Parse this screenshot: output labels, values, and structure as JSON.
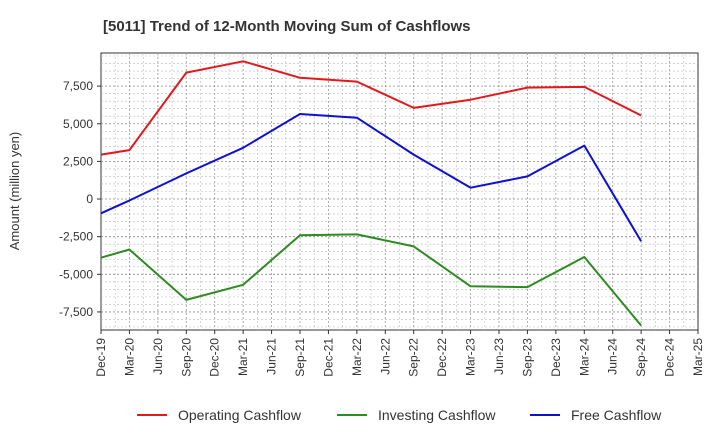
{
  "chart_data": {
    "type": "line",
    "title": "[5011]  Trend of 12-Month Moving Sum of Cashflows",
    "xlabel": "",
    "ylabel": "Amount (million yen)",
    "categories": [
      "Dec-19",
      "Mar-20",
      "Jun-20",
      "Sep-20",
      "Dec-20",
      "Mar-21",
      "Jun-21",
      "Sep-21",
      "Dec-21",
      "Mar-22",
      "Jun-22",
      "Sep-22",
      "Dec-22",
      "Mar-23",
      "Jun-23",
      "Sep-23",
      "Dec-23",
      "Mar-24",
      "Jun-24",
      "Sep-24",
      "Dec-24",
      "Mar-25"
    ],
    "y_ticks": [
      -7500,
      -5000,
      -2500,
      0,
      2500,
      5000,
      7500
    ],
    "y_tick_labels": [
      "-7,500",
      "-5,000",
      "-2,500",
      "0",
      "2,500",
      "5,000",
      "7,500"
    ],
    "ylim": [
      -8700,
      9700
    ],
    "grid": true,
    "legend_position": "bottom",
    "series": [
      {
        "name": "Operating Cashflow",
        "color": "#e31a1c",
        "values": [
          2950,
          3250,
          null,
          8400,
          null,
          9150,
          null,
          8050,
          null,
          7800,
          null,
          6050,
          null,
          6600,
          null,
          7400,
          null,
          7450,
          null,
          5550,
          null,
          null
        ]
      },
      {
        "name": "Investing Cashflow",
        "color": "#2e8b22",
        "values": [
          -3900,
          -3350,
          null,
          -6700,
          null,
          -5700,
          null,
          -2400,
          null,
          -2350,
          null,
          -3150,
          null,
          -5800,
          null,
          -5850,
          null,
          -3850,
          null,
          -8400,
          null,
          null
        ]
      },
      {
        "name": "Free Cashflow",
        "color": "#1010d0",
        "values": [
          -950,
          -100,
          null,
          1700,
          null,
          3400,
          null,
          5650,
          null,
          5400,
          null,
          2950,
          null,
          750,
          null,
          1500,
          null,
          3550,
          null,
          -2800,
          null,
          null
        ]
      }
    ]
  }
}
